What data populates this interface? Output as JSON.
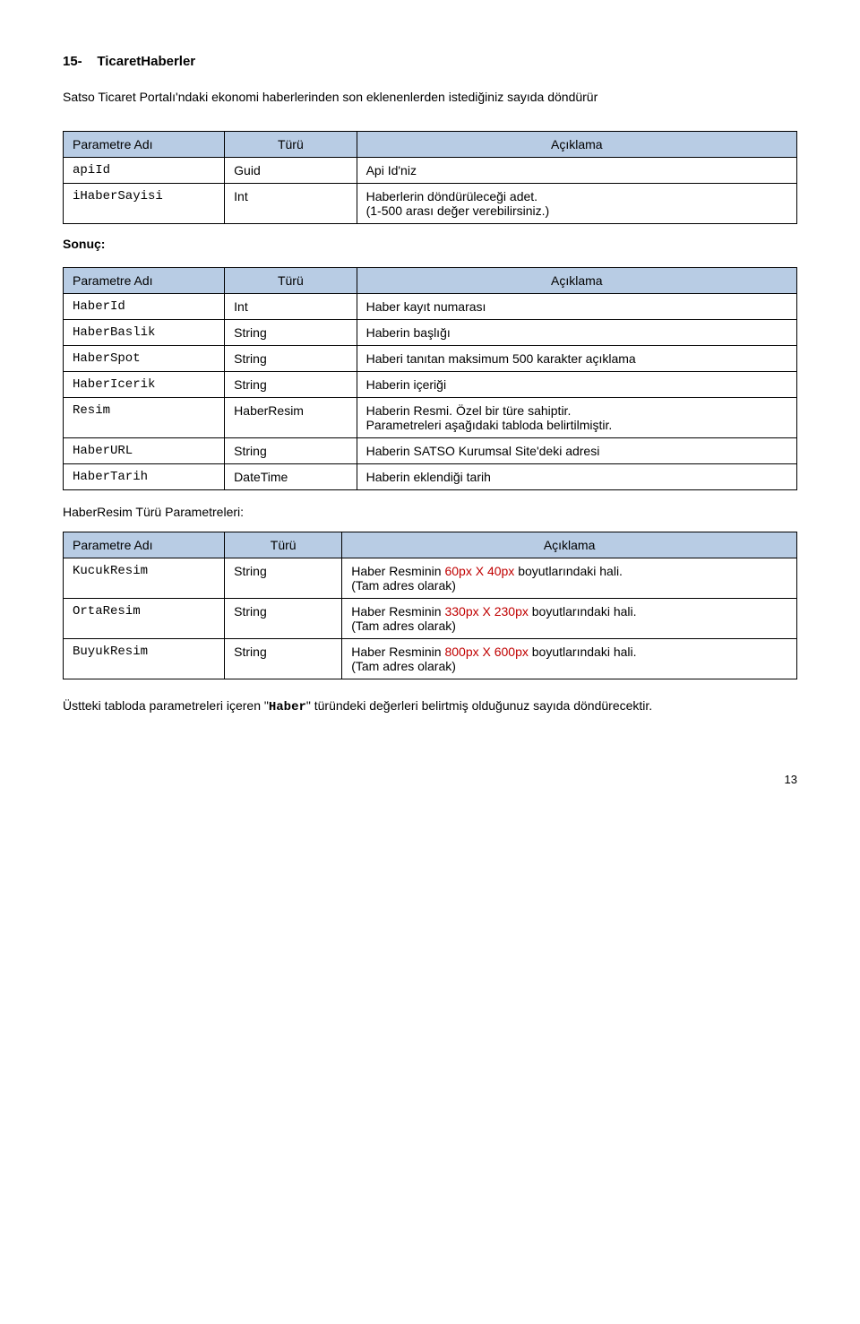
{
  "title_num": "15-",
  "title_text": "TicaretHaberler",
  "intro": "Satso Ticaret Portalı'ndaki ekonomi haberlerinden son eklenenlerden istediğiniz sayıda döndürür",
  "headers": {
    "p": "Parametre Adı",
    "t": "Türü",
    "a": "Açıklama"
  },
  "input_rows": [
    {
      "p": "apiId",
      "t": "Guid",
      "a": "Api Id'niz"
    },
    {
      "p": "iHaberSayisi",
      "t": "Int",
      "a": "Haberlerin döndürüleceği adet.\n(1-500 arası değer verebilirsiniz.)"
    }
  ],
  "sonuc_label": "Sonuç:",
  "output_rows": [
    {
      "p": "HaberId",
      "t": "Int",
      "a": "Haber kayıt numarası"
    },
    {
      "p": "HaberBaslik",
      "t": "String",
      "a": "Haberin başlığı"
    },
    {
      "p": "HaberSpot",
      "t": "String",
      "a": "Haberi tanıtan maksimum 500 karakter açıklama"
    },
    {
      "p": "HaberIcerik",
      "t": "String",
      "a": "Haberin içeriği"
    },
    {
      "p": "Resim",
      "t": "HaberResim",
      "a": "Haberin Resmi. Özel bir türe sahiptir.\nParametreleri aşağıdaki tabloda belirtilmiştir."
    },
    {
      "p": "HaberURL",
      "t": "String",
      "a": "Haberin SATSO Kurumsal Site'deki adresi"
    },
    {
      "p": "HaberTarih",
      "t": "DateTime",
      "a": "Haberin eklendiği tarih"
    }
  ],
  "resim_sub": "HaberResim Türü Parametreleri:",
  "resim_rows": [
    {
      "p": "KucukResim",
      "t": "String",
      "pre": "Haber Resminin ",
      "red": "60px X 40px",
      "post": " boyutlarındaki hali.\n(Tam adres olarak)"
    },
    {
      "p": "OrtaResim",
      "t": "String",
      "pre": "Haber Resminin ",
      "red": "330px X 230px",
      "post": " boyutlarındaki hali.\n(Tam adres olarak)"
    },
    {
      "p": "BuyukResim",
      "t": "String",
      "pre": "Haber Resminin ",
      "red": "800px X 600px",
      "post": " boyutlarındaki hali.\n(Tam adres olarak)"
    }
  ],
  "footer_pre": "Üstteki tabloda parametreleri içeren \"",
  "footer_bold": "Haber",
  "footer_post": "\" türündeki değerleri belirtmiş olduğunuz sayıda döndürecektir.",
  "page": "13"
}
